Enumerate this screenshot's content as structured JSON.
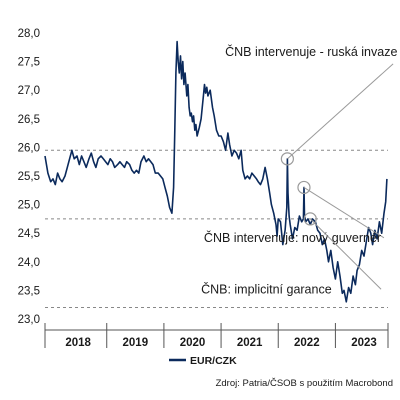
{
  "colors": {
    "series": "#0b2a5c",
    "reference": "#888888",
    "annotation": "#9a9a9a",
    "axis": "#555555"
  },
  "chart_data": {
    "type": "line",
    "series_name": "EUR/CZK",
    "source": "Zdroj: Patria/ČSOB s použitím Macrobond",
    "ylim": [
      23.0,
      28.0
    ],
    "yticks": [
      {
        "label": "28,0",
        "value": 28.0
      },
      {
        "label": "27,5",
        "value": 27.5
      },
      {
        "label": "27,0",
        "value": 27.0
      },
      {
        "label": "26,5",
        "value": 26.5
      },
      {
        "label": "26,0",
        "value": 26.0
      },
      {
        "label": "25,5",
        "value": 25.5
      },
      {
        "label": "25,0",
        "value": 25.0
      },
      {
        "label": "24,5",
        "value": 24.5
      },
      {
        "label": "24,0",
        "value": 24.0
      },
      {
        "label": "23,5",
        "value": 23.5
      },
      {
        "label": "23,0",
        "value": 23.0
      }
    ],
    "xlim": [
      2017.92,
      2023.92
    ],
    "xticks": [
      {
        "label": "2018",
        "value": 2018.5
      },
      {
        "label": "2019",
        "value": 2019.5
      },
      {
        "label": "2020",
        "value": 2020.5
      },
      {
        "label": "2021",
        "value": 2021.5
      },
      {
        "label": "2022",
        "value": 2022.5
      },
      {
        "label": "2023",
        "value": 2023.5
      }
    ],
    "year_separators": [
      2019.0,
      2020.0,
      2021.0,
      2022.0,
      2023.0
    ],
    "reference_lines": [
      25.95,
      24.75,
      23.2
    ],
    "points": [
      [
        2017.92,
        25.85
      ],
      [
        2017.97,
        25.55
      ],
      [
        2018.02,
        25.4
      ],
      [
        2018.06,
        25.45
      ],
      [
        2018.1,
        25.35
      ],
      [
        2018.14,
        25.55
      ],
      [
        2018.18,
        25.45
      ],
      [
        2018.22,
        25.4
      ],
      [
        2018.27,
        25.5
      ],
      [
        2018.31,
        25.65
      ],
      [
        2018.35,
        25.8
      ],
      [
        2018.39,
        25.95
      ],
      [
        2018.43,
        25.8
      ],
      [
        2018.48,
        25.85
      ],
      [
        2018.52,
        25.7
      ],
      [
        2018.56,
        25.85
      ],
      [
        2018.6,
        25.75
      ],
      [
        2018.64,
        25.65
      ],
      [
        2018.69,
        25.8
      ],
      [
        2018.73,
        25.9
      ],
      [
        2018.77,
        25.75
      ],
      [
        2018.81,
        25.65
      ],
      [
        2018.85,
        25.8
      ],
      [
        2018.9,
        25.85
      ],
      [
        2018.94,
        25.8
      ],
      [
        2018.98,
        25.75
      ],
      [
        2019.02,
        25.7
      ],
      [
        2019.06,
        25.8
      ],
      [
        2019.1,
        25.75
      ],
      [
        2019.14,
        25.65
      ],
      [
        2019.19,
        25.7
      ],
      [
        2019.23,
        25.75
      ],
      [
        2019.27,
        25.7
      ],
      [
        2019.31,
        25.65
      ],
      [
        2019.35,
        25.75
      ],
      [
        2019.4,
        25.7
      ],
      [
        2019.44,
        25.6
      ],
      [
        2019.48,
        25.55
      ],
      [
        2019.52,
        25.6
      ],
      [
        2019.56,
        25.55
      ],
      [
        2019.6,
        25.75
      ],
      [
        2019.65,
        25.85
      ],
      [
        2019.69,
        25.75
      ],
      [
        2019.73,
        25.8
      ],
      [
        2019.77,
        25.75
      ],
      [
        2019.81,
        25.7
      ],
      [
        2019.85,
        25.55
      ],
      [
        2019.9,
        25.55
      ],
      [
        2019.94,
        25.5
      ],
      [
        2019.98,
        25.45
      ],
      [
        2020.02,
        25.3
      ],
      [
        2020.06,
        25.15
      ],
      [
        2020.1,
        24.95
      ],
      [
        2020.14,
        24.85
      ],
      [
        2020.17,
        25.3
      ],
      [
        2020.19,
        26.3
      ],
      [
        2020.21,
        27.3
      ],
      [
        2020.23,
        27.85
      ],
      [
        2020.25,
        27.5
      ],
      [
        2020.27,
        27.3
      ],
      [
        2020.29,
        27.6
      ],
      [
        2020.31,
        27.2
      ],
      [
        2020.33,
        27.5
      ],
      [
        2020.35,
        27.1
      ],
      [
        2020.37,
        27.3
      ],
      [
        2020.4,
        26.9
      ],
      [
        2020.42,
        27.1
      ],
      [
        2020.44,
        26.7
      ],
      [
        2020.46,
        26.55
      ],
      [
        2020.48,
        26.6
      ],
      [
        2020.5,
        26.45
      ],
      [
        2020.52,
        26.55
      ],
      [
        2020.54,
        26.3
      ],
      [
        2020.56,
        26.4
      ],
      [
        2020.58,
        26.2
      ],
      [
        2020.62,
        26.35
      ],
      [
        2020.65,
        26.5
      ],
      [
        2020.69,
        26.9
      ],
      [
        2020.71,
        27.1
      ],
      [
        2020.73,
        26.95
      ],
      [
        2020.75,
        27.05
      ],
      [
        2020.77,
        26.9
      ],
      [
        2020.81,
        27.0
      ],
      [
        2020.85,
        26.7
      ],
      [
        2020.88,
        26.55
      ],
      [
        2020.92,
        26.3
      ],
      [
        2020.96,
        26.2
      ],
      [
        2021.0,
        26.2
      ],
      [
        2021.04,
        26.1
      ],
      [
        2021.08,
        25.95
      ],
      [
        2021.12,
        26.25
      ],
      [
        2021.15,
        26.05
      ],
      [
        2021.19,
        25.85
      ],
      [
        2021.23,
        25.95
      ],
      [
        2021.27,
        25.9
      ],
      [
        2021.31,
        25.8
      ],
      [
        2021.35,
        25.95
      ],
      [
        2021.38,
        25.6
      ],
      [
        2021.42,
        25.45
      ],
      [
        2021.46,
        25.5
      ],
      [
        2021.5,
        25.45
      ],
      [
        2021.54,
        25.55
      ],
      [
        2021.58,
        25.5
      ],
      [
        2021.62,
        25.45
      ],
      [
        2021.65,
        25.4
      ],
      [
        2021.69,
        25.35
      ],
      [
        2021.73,
        25.45
      ],
      [
        2021.77,
        25.65
      ],
      [
        2021.81,
        25.45
      ],
      [
        2021.85,
        25.2
      ],
      [
        2021.88,
        25.0
      ],
      [
        2021.92,
        24.85
      ],
      [
        2021.96,
        24.65
      ],
      [
        2021.98,
        24.45
      ],
      [
        2022.0,
        24.75
      ],
      [
        2022.04,
        24.7
      ],
      [
        2022.08,
        24.3
      ],
      [
        2022.12,
        24.55
      ],
      [
        2022.15,
        24.95
      ],
      [
        2022.16,
        25.8
      ],
      [
        2022.17,
        25.2
      ],
      [
        2022.19,
        24.8
      ],
      [
        2022.21,
        24.65
      ],
      [
        2022.25,
        24.4
      ],
      [
        2022.29,
        24.6
      ],
      [
        2022.33,
        24.55
      ],
      [
        2022.37,
        24.8
      ],
      [
        2022.41,
        24.7
      ],
      [
        2022.44,
        24.75
      ],
      [
        2022.45,
        25.3
      ],
      [
        2022.46,
        24.8
      ],
      [
        2022.48,
        24.7
      ],
      [
        2022.52,
        24.75
      ],
      [
        2022.56,
        24.65
      ],
      [
        2022.6,
        24.75
      ],
      [
        2022.65,
        24.7
      ],
      [
        2022.69,
        24.55
      ],
      [
        2022.73,
        24.5
      ],
      [
        2022.77,
        24.3
      ],
      [
        2022.81,
        24.4
      ],
      [
        2022.85,
        24.2
      ],
      [
        2022.88,
        24.0
      ],
      [
        2022.92,
        24.2
      ],
      [
        2022.96,
        23.9
      ],
      [
        2023.0,
        23.7
      ],
      [
        2023.04,
        24.0
      ],
      [
        2023.08,
        23.75
      ],
      [
        2023.12,
        23.45
      ],
      [
        2023.15,
        23.5
      ],
      [
        2023.19,
        23.3
      ],
      [
        2023.23,
        23.55
      ],
      [
        2023.27,
        23.45
      ],
      [
        2023.31,
        23.75
      ],
      [
        2023.35,
        23.6
      ],
      [
        2023.38,
        23.85
      ],
      [
        2023.42,
        23.95
      ],
      [
        2023.46,
        24.2
      ],
      [
        2023.5,
        24.1
      ],
      [
        2023.54,
        24.35
      ],
      [
        2023.58,
        24.6
      ],
      [
        2023.62,
        24.5
      ],
      [
        2023.65,
        24.3
      ],
      [
        2023.69,
        24.55
      ],
      [
        2023.73,
        24.4
      ],
      [
        2023.77,
        24.7
      ],
      [
        2023.81,
        24.5
      ],
      [
        2023.85,
        24.85
      ],
      [
        2023.88,
        25.05
      ],
      [
        2023.9,
        25.45
      ]
    ],
    "annotations": [
      {
        "text": "ČNB intervenuje - ruská invaze",
        "point": [
          2022.16,
          25.8
        ],
        "label_pos": [
          2022.4,
          27.6
        ]
      },
      {
        "text": "ČNB intervenuje: nový guvernér",
        "point": [
          2022.45,
          25.3
        ],
        "label_pos": [
          2020.7,
          24.35
        ]
      },
      {
        "text": "ČNB: implicitní garance",
        "point": [
          2022.56,
          24.75
        ],
        "label_pos": [
          2020.65,
          23.45
        ]
      }
    ]
  }
}
